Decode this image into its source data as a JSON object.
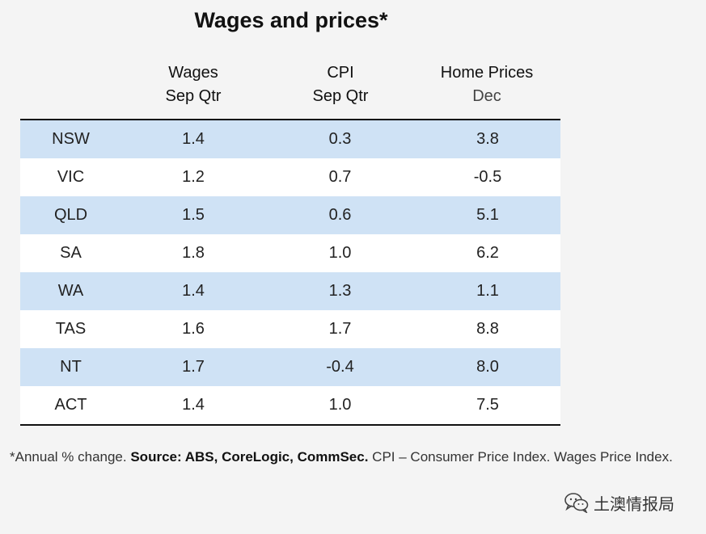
{
  "chart_data": {
    "type": "table",
    "title": "Wages and prices*",
    "columns": [
      {
        "key": "state",
        "label": "",
        "sublabel": ""
      },
      {
        "key": "wages",
        "label": "Wages",
        "sublabel": "Sep Qtr"
      },
      {
        "key": "cpi",
        "label": "CPI",
        "sublabel": "Sep Qtr"
      },
      {
        "key": "home",
        "label": "Home Prices",
        "sublabel": "Dec"
      }
    ],
    "rows": [
      {
        "state": "NSW",
        "wages": "1.4",
        "cpi": "0.3",
        "home": "3.8"
      },
      {
        "state": "VIC",
        "wages": "1.2",
        "cpi": "0.7",
        "home": "-0.5"
      },
      {
        "state": "QLD",
        "wages": "1.5",
        "cpi": "0.6",
        "home": "5.1"
      },
      {
        "state": "SA",
        "wages": "1.8",
        "cpi": "1.0",
        "home": "6.2"
      },
      {
        "state": "WA",
        "wages": "1.4",
        "cpi": "1.3",
        "home": "1.1"
      },
      {
        "state": "TAS",
        "wages": "1.6",
        "cpi": "1.7",
        "home": "8.8"
      },
      {
        "state": "NT",
        "wages": "1.7",
        "cpi": "-0.4",
        "home": "8.0"
      },
      {
        "state": "ACT",
        "wages": "1.4",
        "cpi": "1.0",
        "home": "7.5"
      }
    ],
    "row_shading": [
      "#cfe2f5",
      "#ffffff"
    ]
  },
  "footnote": {
    "part1": "*Annual % change. ",
    "source": "Source: ABS, CoreLogic, CommSec.",
    "part2": " CPI – Consumer Price Index. Wages Price Index."
  },
  "watermark": {
    "icon": "wechat-icon",
    "text": "土澳情报局"
  },
  "colors": {
    "background": "#f4f4f4",
    "shaded_row": "#cfe2f5",
    "rule": "#111111"
  }
}
